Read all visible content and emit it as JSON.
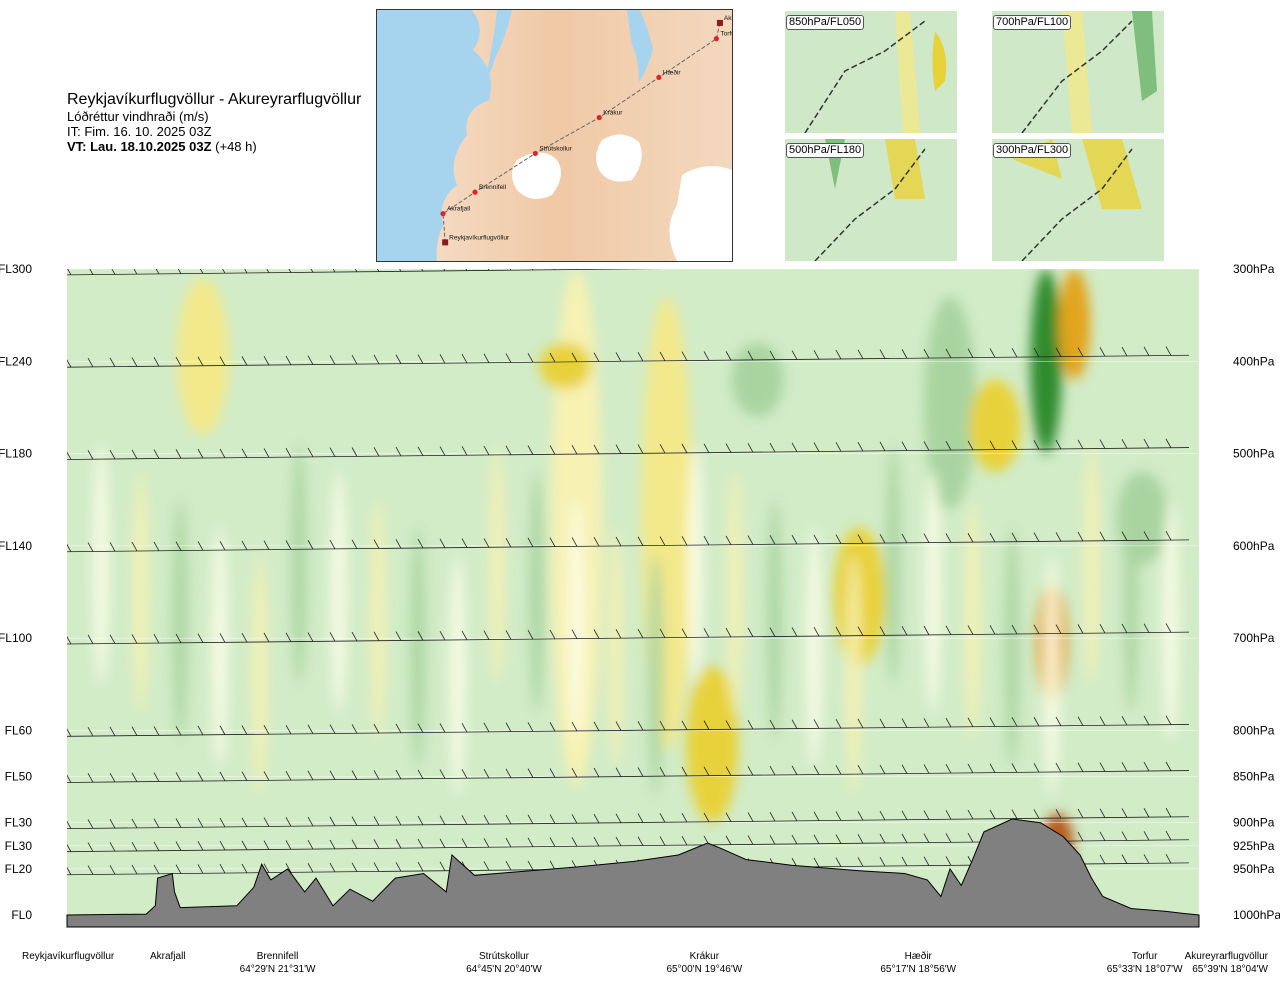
{
  "header": {
    "route": "Reykjavíkurflugvöllur - Akureyrarflugvöllur",
    "quantity": "Lóðréttur vindhraði (m/s)",
    "issue_time": "IT: Fim. 16. 10. 2025 03Z",
    "valid_time_bold": "VT: Lau. 18.10.2025 03Z",
    "valid_time_offset": "(+48 h)"
  },
  "overview_map": {
    "waypoints": [
      {
        "name": "Akureyrarflugvöllur",
        "lat": 65.66,
        "lon": -18.07
      },
      {
        "name": "Torfur",
        "lat": 65.55,
        "lon": -18.12
      },
      {
        "name": "Hæðir",
        "lat": 65.28,
        "lon": -18.93
      },
      {
        "name": "Krákur",
        "lat": 65.0,
        "lon": -19.77
      },
      {
        "name": "Strútskollur",
        "lat": 64.75,
        "lon": -20.67
      },
      {
        "name": "Brennifell",
        "lat": 64.48,
        "lon": -21.52
      },
      {
        "name": "Akrafjall",
        "lat": 64.33,
        "lon": -21.97
      },
      {
        "name": "Reykjavíkurflugvöllur",
        "lat": 64.13,
        "lon": -21.94
      }
    ],
    "colors": {
      "sea": "#a6d4ee",
      "land": "#f2d6bd",
      "route": "#555555",
      "waypoint": "#e32222",
      "airport": "#8b1a1a"
    }
  },
  "mini_maps": [
    {
      "label": "850hPa/FL050"
    },
    {
      "label": "700hPa/FL100"
    },
    {
      "label": "500hPa/FL180"
    },
    {
      "label": "300hPa/FL300"
    }
  ],
  "chart_data": {
    "type": "heatmap",
    "title": "Reykjavíkurflugvöllur - Akureyrarflugvöllur",
    "variable": "Lóðréttur vindhraði (m/s)",
    "x_kind": "distance along route (waypoints)",
    "levels": [
      {
        "fl": "FL300",
        "hpa": "300hPa",
        "p": 300
      },
      {
        "fl": "FL240",
        "hpa": "400hPa",
        "p": 400
      },
      {
        "fl": "FL180",
        "hpa": "500hPa",
        "p": 500
      },
      {
        "fl": "FL140",
        "hpa": "600hPa",
        "p": 600
      },
      {
        "fl": "FL100",
        "hpa": "700hPa",
        "p": 700
      },
      {
        "fl": "FL60",
        "hpa": "800hPa",
        "p": 800
      },
      {
        "fl": "FL50",
        "hpa": "850hPa",
        "p": 850
      },
      {
        "fl": "FL30",
        "hpa": "900hPa",
        "p": 900
      },
      {
        "fl": "FL30",
        "hpa": "925hPa",
        "p": 925
      },
      {
        "fl": "FL20",
        "hpa": "950hPa",
        "p": 950
      },
      {
        "fl": "FL0",
        "hpa": "1000hPa",
        "p": 1000
      }
    ],
    "ylim_hpa": [
      1000,
      300
    ],
    "locations": [
      {
        "name": "Reykjavíkurflugvöllur",
        "coord": "",
        "pos": 0.0
      },
      {
        "name": "Akrafjall",
        "coord": "",
        "pos": 0.089
      },
      {
        "name": "Brennifell",
        "coord": "64°29'N 21°31'W",
        "pos": 0.186
      },
      {
        "name": "Strútskollur",
        "coord": "64°45'N 20°40'W",
        "pos": 0.386
      },
      {
        "name": "Krákur",
        "coord": "65°00'N 19°46'W",
        "pos": 0.563
      },
      {
        "name": "Hæðir",
        "coord": "65°17'N 18°56'W",
        "pos": 0.752
      },
      {
        "name": "Torfur",
        "coord": "65°33'N 18°07'W",
        "pos": 0.952
      },
      {
        "name": "Akureyrarflugvöllur",
        "coord": "65°39'N 18°04'W",
        "pos": 1.0
      }
    ],
    "color_classes": {
      "strong_down": "#2e8b2e",
      "moderate_down": "#6bb36b",
      "weak_down": "#a9d4a0",
      "slight_down": "#d2ecc8",
      "near_zero": "#fdfde8",
      "slight_up": "#f7f1b2",
      "weak_up": "#f3e88a",
      "moderate_up": "#e8d23a",
      "strong_up": "#e2a41c",
      "very_strong_up": "#b75a1a"
    },
    "features": [
      {
        "kind": "weak_up",
        "x_pos": 0.12,
        "p_range": [
          310,
          480
        ]
      },
      {
        "kind": "slight_up",
        "x_pos": 0.45,
        "p_range": [
          300,
          860
        ]
      },
      {
        "kind": "moderate_up",
        "x_pos": 0.44,
        "p_range": [
          380,
          430
        ]
      },
      {
        "kind": "weak_up",
        "x_pos": 0.53,
        "p_range": [
          330,
          820
        ]
      },
      {
        "kind": "moderate_up",
        "x_pos": 0.57,
        "p_range": [
          730,
          900
        ]
      },
      {
        "kind": "weak_down",
        "x_pos": 0.61,
        "p_range": [
          380,
          460
        ]
      },
      {
        "kind": "weak_down",
        "x_pos": 0.78,
        "p_range": [
          330,
          560
        ]
      },
      {
        "kind": "moderate_up",
        "x_pos": 0.7,
        "p_range": [
          580,
          730
        ]
      },
      {
        "kind": "strong_down",
        "x_pos": 0.865,
        "p_range": [
          300,
          500
        ]
      },
      {
        "kind": "strong_up",
        "x_pos": 0.89,
        "p_range": [
          300,
          420
        ]
      },
      {
        "kind": "strong_up",
        "x_pos": 0.87,
        "p_range": [
          640,
          770
        ]
      },
      {
        "kind": "moderate_up",
        "x_pos": 0.82,
        "p_range": [
          420,
          520
        ]
      },
      {
        "kind": "very_strong_up",
        "x_pos": 0.875,
        "p_range": [
          890,
          960
        ]
      },
      {
        "kind": "weak_down",
        "x_pos": 0.95,
        "p_range": [
          520,
          620
        ]
      }
    ],
    "wind_barb_rows_hpa": [
      300,
      400,
      500,
      600,
      700,
      800,
      850,
      900,
      925,
      950
    ],
    "grid": false,
    "legend": "none"
  }
}
